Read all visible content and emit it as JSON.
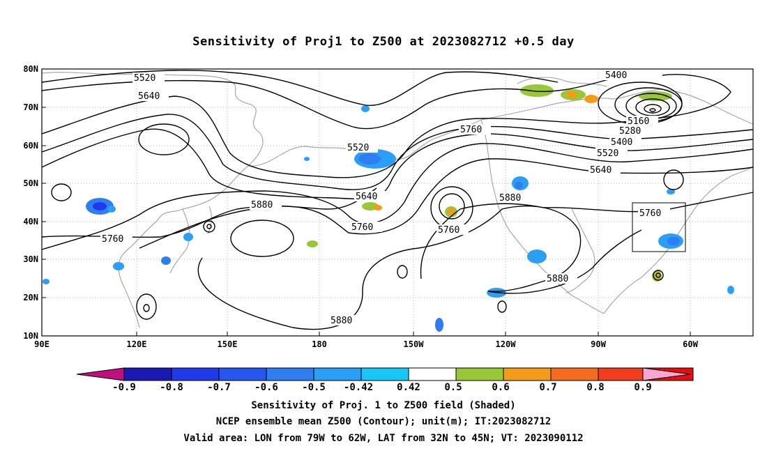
{
  "title": "Sensitivity of Proj1 to Z500 at 2023082712 +0.5 day",
  "lat_labels": [
    "80N",
    "70N",
    "60N",
    "50N",
    "40N",
    "30N",
    "20N",
    "10N"
  ],
  "lon_labels": [
    "90E",
    "120E",
    "150E",
    "180",
    "150W",
    "120W",
    "90W",
    "60W"
  ],
  "contour_labels": [
    "5520",
    "5640",
    "5400",
    "5160",
    "5280",
    "5400",
    "5520",
    "5640",
    "5760",
    "5520",
    "5640",
    "5760",
    "5760",
    "5880",
    "5880",
    "5760",
    "5880",
    "5880",
    "5760"
  ],
  "colorbar": {
    "labels": [
      "-0.9",
      "-0.8",
      "-0.7",
      "-0.6",
      "-0.5",
      "-0.42",
      "0.42",
      "0.5",
      "0.6",
      "0.7",
      "0.8",
      "0.9"
    ],
    "colors": [
      "#c0107f",
      "#1a1ab3",
      "#1f3aea",
      "#2656f0",
      "#2e7ef2",
      "#2a9ff5",
      "#19c6f8",
      "#ffffff",
      "#99c836",
      "#f59b1a",
      "#f56c1e",
      "#f03d1c",
      "#e80e0e",
      "#f6a6cf"
    ]
  },
  "captions": [
    "Sensitivity of Proj. 1 to Z500 field (Shaded)",
    "NCEP ensemble mean Z500 (Contour); unit(m); IT:2023082712",
    "Valid area: LON from 79W to 62W, LAT from 32N to 45N; VT: 2023090112"
  ]
}
